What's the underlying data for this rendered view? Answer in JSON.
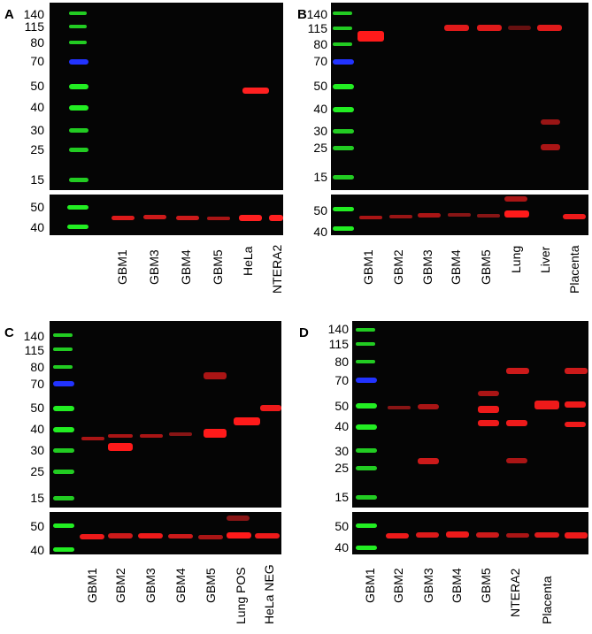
{
  "panels": [
    {
      "letter": "A",
      "main_markers": [
        "140",
        "115",
        "80",
        "70",
        "50",
        "40",
        "30",
        "25",
        "15"
      ],
      "loading_markers": [
        "50",
        "40"
      ],
      "lanes": [
        "GBM1",
        "GBM3",
        "GBM4",
        "GBM5",
        "HeLa",
        "NTERA2"
      ]
    },
    {
      "letter": "B",
      "main_markers": [
        "140",
        "115",
        "80",
        "70",
        "50",
        "40",
        "30",
        "25",
        "15"
      ],
      "loading_markers": [
        "50",
        "40"
      ],
      "lanes": [
        "GBM1",
        "GBM2",
        "GBM3",
        "GBM4",
        "GBM5",
        "Lung",
        "Liver",
        "Placenta"
      ]
    },
    {
      "letter": "C",
      "main_markers": [
        "140",
        "115",
        "80",
        "70",
        "50",
        "40",
        "30",
        "25",
        "15"
      ],
      "loading_markers": [
        "50",
        "40"
      ],
      "lanes": [
        "GBM1",
        "GBM2",
        "GBM3",
        "GBM4",
        "GBM5",
        "Lung POS",
        "HeLa NEG"
      ]
    },
    {
      "letter": "D",
      "main_markers": [
        "140",
        "115",
        "80",
        "70",
        "50",
        "40",
        "30",
        "25",
        "15"
      ],
      "loading_markers": [
        "50",
        "40"
      ],
      "lanes": [
        "GBM1",
        "GBM2",
        "GBM3",
        "GBM4",
        "GBM5",
        "NTERA2",
        "Placenta"
      ]
    }
  ],
  "colors": {
    "blot_background": "#050505",
    "ladder_green": "#22dd22",
    "ladder_blue": "#2233ff",
    "signal_red": "#ff1a1a"
  }
}
